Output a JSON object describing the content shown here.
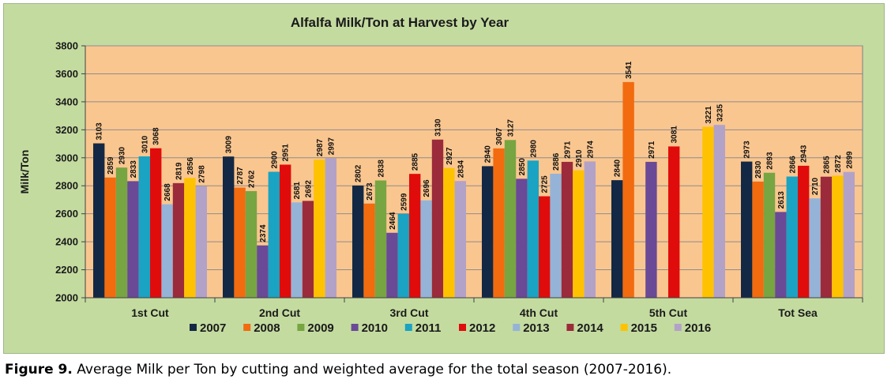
{
  "chart_data": {
    "type": "bar",
    "title": "Alfalfa Milk/Ton at Harvest by Year",
    "ylabel": "Milk/Ton",
    "xlabel": "",
    "ylim": [
      2000,
      3800
    ],
    "yticks": [
      2000,
      2200,
      2400,
      2600,
      2800,
      3000,
      3200,
      3400,
      3600,
      3800
    ],
    "grid": true,
    "legend_position": "bottom",
    "categories": [
      "1st Cut",
      "2nd Cut",
      "3rd Cut",
      "4th Cut",
      "5th Cut",
      "Tot Sea"
    ],
    "series": [
      {
        "name": "2007",
        "color": "#132844",
        "values": [
          3103,
          3009,
          2802,
          2940,
          2840,
          2973
        ]
      },
      {
        "name": "2008",
        "color": "#f26b0f",
        "values": [
          2859,
          2787,
          2673,
          3067,
          3541,
          2830
        ]
      },
      {
        "name": "2009",
        "color": "#77a542",
        "values": [
          2930,
          2762,
          2838,
          3127,
          null,
          2893
        ]
      },
      {
        "name": "2010",
        "color": "#6a4996",
        "values": [
          2833,
          2374,
          2464,
          2850,
          2971,
          2613
        ]
      },
      {
        "name": "2011",
        "color": "#1aa3c3",
        "values": [
          3010,
          2900,
          2599,
          2980,
          null,
          2866
        ]
      },
      {
        "name": "2012",
        "color": "#e00c0c",
        "values": [
          3068,
          2951,
          2885,
          2725,
          3081,
          2943
        ]
      },
      {
        "name": "2013",
        "color": "#95b3d7",
        "values": [
          2668,
          2681,
          2696,
          2886,
          null,
          2710
        ]
      },
      {
        "name": "2014",
        "color": "#9b2b3a",
        "values": [
          2819,
          2692,
          3130,
          2971,
          null,
          2865
        ]
      },
      {
        "name": "2015",
        "color": "#fec200",
        "values": [
          2856,
          2987,
          2927,
          2910,
          3221,
          2872
        ]
      },
      {
        "name": "2016",
        "color": "#b3a2c7",
        "values": [
          2798,
          2997,
          2834,
          2974,
          3235,
          2899
        ]
      }
    ],
    "plot_background": "#fac68f",
    "panel_background": "#c4dba0"
  },
  "caption": {
    "label": "Figure 9.",
    "text": " Average Milk per Ton by cutting and weighted average for the total season (2007-2016)."
  }
}
